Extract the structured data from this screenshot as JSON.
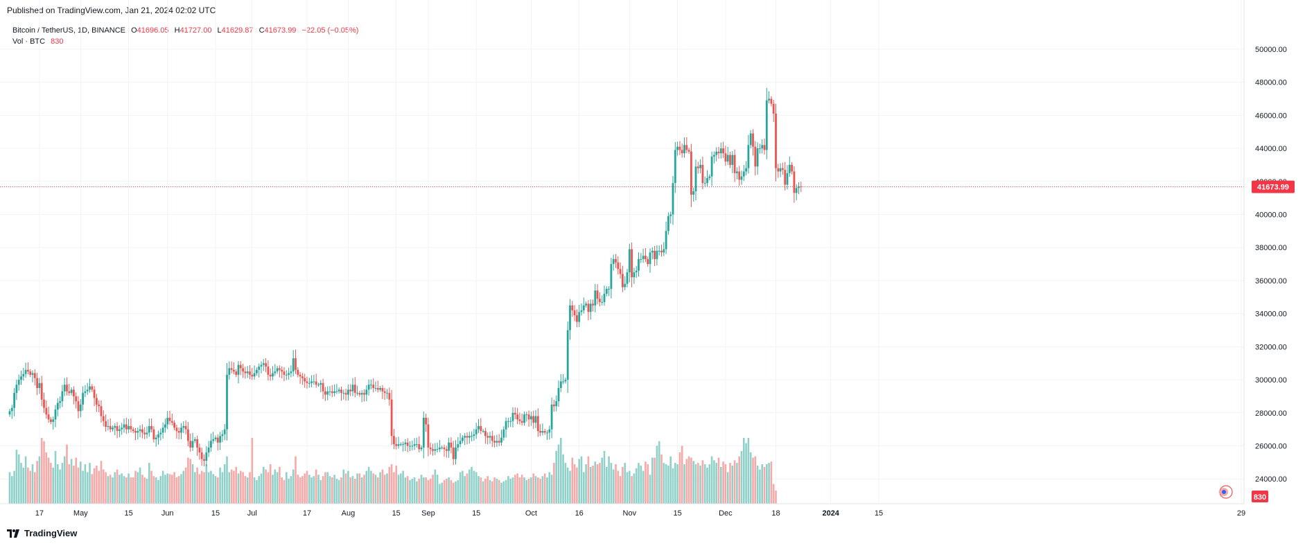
{
  "header": {
    "published": "Published on TradingView.com, Jan 21, 2024 02:02 UTC"
  },
  "legend": {
    "symbol": "Bitcoin / TetherUS, 1D, BINANCE",
    "open_label": "O",
    "open": "41696.05",
    "high_label": "H",
    "high": "41727.00",
    "low_label": "L",
    "low": "41629.87",
    "close_label": "C",
    "close": "41673.99",
    "change": "−22.05 (−0.05%)",
    "vol_label": "Vol · BTC",
    "vol_value": "830"
  },
  "footer": {
    "brand": "TradingView"
  },
  "colors": {
    "up": "#26a69a",
    "down": "#ef5350",
    "vol_up": "#8fd1c9",
    "vol_down": "#f7a9a7",
    "grid": "#f0f3fa",
    "axis_text": "#131722",
    "last_price": "#f23645"
  },
  "chart_data": {
    "type": "candlestick",
    "symbol": "Bitcoin / TetherUS",
    "interval": "1D",
    "exchange": "BINANCE",
    "x_tick_labels": [
      "17",
      "May",
      "15",
      "Jun",
      "15",
      "Jul",
      "17",
      "Aug",
      "15",
      "Sep",
      "15",
      "Oct",
      "16",
      "Nov",
      "15",
      "Dec",
      "18",
      "2024",
      "15",
      "29"
    ],
    "y_tick_labels": [
      "50000.00",
      "48000.00",
      "46000.00",
      "44000.00",
      "42000.00",
      "40000.00",
      "38000.00",
      "36000.00",
      "34000.00",
      "32000.00",
      "30000.00",
      "28000.00",
      "26000.00",
      "24000.00"
    ],
    "y_range": [
      22500,
      51800
    ],
    "last_price": "41673.99",
    "last_volume": "830",
    "grid": true,
    "close_series": [
      28100,
      28300,
      29200,
      29700,
      30000,
      30200,
      30350,
      30600,
      30500,
      30300,
      30400,
      30100,
      29500,
      29800,
      28800,
      28300,
      27900,
      27600,
      27450,
      27600,
      28200,
      28600,
      28700,
      29300,
      29700,
      29300,
      29200,
      29400,
      29000,
      28700,
      28100,
      28500,
      29200,
      29300,
      29400,
      29600,
      29400,
      28900,
      28500,
      28400,
      27800,
      27500,
      27150,
      27200,
      27000,
      27100,
      27200,
      26900,
      27000,
      27100,
      27300,
      27000,
      27200,
      27000,
      26900,
      26800,
      26900,
      27000,
      26800,
      26700,
      26800,
      27200,
      27000,
      26400,
      26500,
      26700,
      26800,
      27100,
      27300,
      27700,
      27500,
      27400,
      27100,
      26900,
      26800,
      27100,
      27200,
      27000,
      26300,
      25900,
      26300,
      26400,
      25900,
      25600,
      25200,
      25100,
      25600,
      25900,
      26300,
      26400,
      26500,
      26200,
      26600,
      26700,
      27000,
      30300,
      30700,
      30600,
      30500,
      30300,
      30900,
      30700,
      30500,
      30400,
      30500,
      30300,
      30200,
      30400,
      30600,
      30800,
      30900,
      31000,
      30800,
      30300,
      30200,
      30400,
      30500,
      30700,
      30600,
      30500,
      30300,
      30300,
      30400,
      30500,
      31300,
      30600,
      30300,
      30200,
      30100,
      29900,
      29800,
      29800,
      29900,
      29900,
      29700,
      29700,
      29800,
      29300,
      29100,
      29300,
      29300,
      29200,
      29300,
      29300,
      29400,
      29200,
      29200,
      29100,
      29400,
      29300,
      29700,
      29200,
      29200,
      29100,
      29200,
      29100,
      29400,
      29700,
      29700,
      29500,
      29500,
      29400,
      29500,
      29300,
      29200,
      29200,
      28800,
      26600,
      26100,
      26000,
      26100,
      26100,
      26100,
      26200,
      26000,
      26000,
      26000,
      26100,
      26100,
      25800,
      25900,
      27700,
      27300,
      25900,
      25800,
      25700,
      25800,
      25800,
      25900,
      25900,
      25800,
      25700,
      26200,
      25900,
      25200,
      25900,
      26100,
      26300,
      26500,
      26600,
      26500,
      26600,
      26600,
      26700,
      27000,
      27200,
      26900,
      26900,
      26600,
      26500,
      26600,
      26300,
      26200,
      26300,
      26200,
      26500,
      27000,
      27500,
      27500,
      27500,
      28000,
      27900,
      27600,
      27500,
      27400,
      27900,
      27900,
      27600,
      27800,
      27400,
      27800,
      26900,
      26800,
      26900,
      26800,
      26800,
      27000,
      28500,
      28400,
      28700,
      29500,
      29900,
      29900,
      30000,
      33000,
      34500,
      34200,
      33900,
      33500,
      34100,
      34200,
      34500,
      34600,
      34100,
      34600,
      34500,
      35400,
      34900,
      34700,
      34700,
      35200,
      35500,
      35500,
      37000,
      37300,
      37100,
      36700,
      36400,
      35600,
      35800,
      36500,
      37900,
      36200,
      36500,
      36600,
      37300,
      37300,
      37500,
      37300,
      37000,
      37700,
      37800,
      37300,
      37800,
      37800,
      37700,
      37900,
      39000,
      39900,
      40000,
      41900,
      43900,
      44100,
      43900,
      43700,
      44200,
      43900,
      43800,
      41200,
      41400,
      42900,
      42800,
      43000,
      41900,
      41900,
      42200,
      42300,
      43500,
      43600,
      43800,
      43700,
      44000,
      43700,
      43200,
      43600,
      43000,
      43600,
      42500,
      42600,
      42100,
      42300,
      42600,
      42800,
      44200,
      44900,
      44100,
      42900,
      44000,
      44000,
      44200,
      43900,
      46900,
      47000,
      46700,
      46100,
      42800,
      42600,
      42800,
      42700,
      41800,
      42500,
      43000,
      42600,
      41300,
      41600,
      41700,
      41674
    ],
    "volume_series": [
      48,
      42,
      50,
      82,
      75,
      62,
      55,
      72,
      55,
      50,
      60,
      48,
      65,
      72,
      100,
      95,
      78,
      70,
      62,
      55,
      80,
      60,
      52,
      62,
      72,
      90,
      60,
      68,
      58,
      70,
      55,
      64,
      50,
      60,
      48,
      62,
      45,
      54,
      58,
      50,
      65,
      52,
      48,
      42,
      44,
      40,
      48,
      52,
      44,
      46,
      42,
      40,
      46,
      40,
      40,
      50,
      48,
      55,
      44,
      40,
      38,
      62,
      50,
      42,
      40,
      36,
      42,
      50,
      44,
      46,
      45,
      44,
      48,
      40,
      42,
      45,
      50,
      55,
      70,
      68,
      60,
      48,
      55,
      45,
      50,
      48,
      60,
      48,
      50,
      45,
      42,
      40,
      55,
      48,
      60,
      72,
      48,
      52,
      50,
      56,
      46,
      50,
      48,
      42,
      40,
      48,
      100,
      40,
      36,
      42,
      46,
      56,
      52,
      48,
      60,
      44,
      52,
      48,
      56,
      40,
      36,
      48,
      38,
      42,
      52,
      72,
      44,
      40,
      42,
      46,
      50,
      44,
      40,
      42,
      52,
      44,
      36,
      42,
      48,
      48,
      42,
      40,
      44,
      38,
      36,
      40,
      52,
      46,
      50,
      40,
      42,
      38,
      46,
      46,
      40,
      44,
      50,
      56,
      50,
      46,
      44,
      40,
      48,
      52,
      44,
      46,
      56,
      60,
      48,
      58,
      44,
      46,
      50,
      40,
      42,
      36,
      38,
      40,
      34,
      38,
      44,
      40,
      40,
      36,
      38,
      44,
      52,
      44,
      30,
      32,
      36,
      38,
      40,
      36,
      32,
      34,
      36,
      48,
      50,
      42,
      46,
      52,
      56,
      50,
      48,
      42,
      40,
      34,
      38,
      42,
      36,
      34,
      40,
      38,
      36,
      32,
      34,
      36,
      42,
      38,
      40,
      44,
      46,
      40,
      44,
      40,
      36,
      38,
      40,
      46,
      42,
      40,
      38,
      42,
      46,
      40,
      48,
      44,
      62,
      80,
      90,
      100,
      75,
      62,
      55,
      50,
      70,
      60,
      55,
      68,
      72,
      48,
      60,
      72,
      56,
      58,
      64,
      60,
      62,
      70,
      80,
      56,
      72,
      62,
      52,
      60,
      50,
      42,
      56,
      62,
      48,
      50,
      42,
      46,
      54,
      62,
      58,
      50,
      64,
      60,
      44,
      70,
      70,
      88,
      95,
      75,
      62,
      60,
      58,
      72,
      54,
      62,
      60,
      78,
      88,
      60,
      68,
      72,
      70,
      65,
      60,
      62,
      58,
      66,
      60,
      55,
      60,
      72,
      66,
      62,
      70,
      56,
      64,
      60,
      48,
      62,
      58,
      66,
      62,
      72,
      80,
      100,
      92,
      100,
      78,
      70,
      72,
      58,
      52,
      60,
      56,
      60,
      62,
      64,
      30,
      20
    ]
  }
}
